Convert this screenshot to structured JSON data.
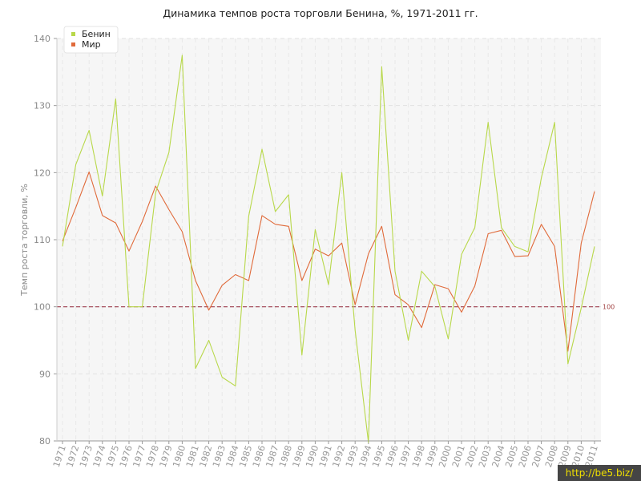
{
  "chart_data": {
    "type": "line",
    "title": "Динамика темпов роста торговли Бенина, %, 1971-2011 гг.",
    "xlabel": "",
    "ylabel": "Темп роста торговли, %",
    "ylim": [
      80,
      140
    ],
    "yticks": [
      80,
      90,
      100,
      110,
      120,
      130,
      140
    ],
    "grid": true,
    "legend_position": "top-left",
    "reference_line": {
      "value": 100,
      "label": "100",
      "color": "#a04050"
    },
    "x": [
      "1971",
      "1972",
      "1973",
      "1974",
      "1975",
      "1976",
      "1977",
      "1978",
      "1979",
      "1980",
      "1981",
      "1982",
      "1983",
      "1984",
      "1985",
      "1986",
      "1987",
      "1988",
      "1989",
      "1990",
      "1991",
      "1992",
      "1993",
      "1994",
      "1995",
      "1996",
      "1997",
      "1998",
      "1999",
      "2000",
      "2001",
      "2002",
      "2003",
      "2004",
      "2005",
      "2006",
      "2007",
      "2008",
      "2009",
      "2010",
      "2011"
    ],
    "series": [
      {
        "name": "Бенин",
        "color": "#b8d84a",
        "values": [
          109.0,
          121.2,
          126.3,
          116.5,
          131.0,
          100.0,
          100.0,
          117.0,
          123.0,
          137.5,
          90.8,
          95.0,
          89.5,
          88.2,
          113.5,
          123.5,
          114.2,
          116.7,
          92.8,
          111.5,
          103.3,
          120.0,
          96.5,
          79.8,
          135.8,
          105.3,
          95.0,
          105.3,
          103.0,
          95.2,
          107.8,
          111.8,
          127.5,
          111.8,
          109.0,
          108.2,
          119.2,
          127.5,
          91.5,
          99.8,
          109.0
        ]
      },
      {
        "name": "Мир",
        "color": "#e06a3a",
        "values": [
          109.8,
          114.8,
          120.1,
          113.6,
          112.5,
          108.3,
          112.7,
          118.0,
          114.5,
          111.2,
          103.9,
          99.5,
          103.2,
          104.8,
          103.9,
          113.6,
          112.3,
          112.0,
          103.9,
          108.6,
          107.6,
          109.5,
          100.3,
          107.9,
          112.0,
          101.8,
          100.3,
          96.9,
          103.3,
          102.7,
          99.2,
          103.1,
          110.9,
          111.4,
          107.5,
          107.6,
          112.3,
          109.0,
          93.4,
          109.5,
          117.2
        ]
      }
    ]
  },
  "watermark": "http://be5.biz/"
}
